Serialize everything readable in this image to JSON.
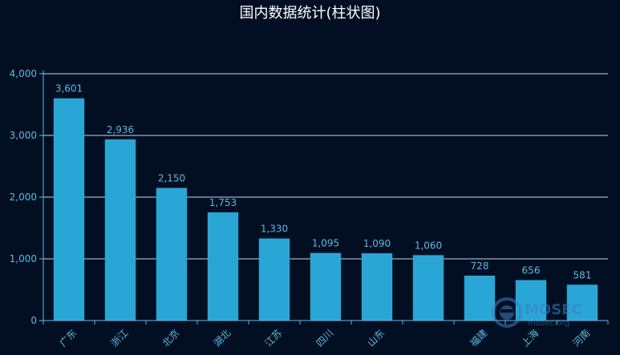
{
  "chart_data": {
    "type": "bar",
    "title": "国内数据统计(柱状图)",
    "categories": [
      "广东",
      "浙江",
      "北京",
      "湖北",
      "江苏",
      "四川",
      "山东",
      "",
      "福建",
      "上海",
      "河南"
    ],
    "values": [
      3601,
      2936,
      2150,
      1753,
      1330,
      1095,
      1090,
      1060,
      728,
      656,
      581
    ],
    "value_labels": [
      "3,601",
      "2,936",
      "2,150",
      "1,753",
      "1,330",
      "1,095",
      "1,090",
      "1,060",
      "728",
      "656",
      "581"
    ],
    "y_ticks": [
      0,
      1000,
      2000,
      3000,
      4000
    ],
    "y_tick_labels": [
      "0",
      "1,000",
      "2,000",
      "3,000",
      "4,000"
    ],
    "ylim": [
      0,
      4000
    ],
    "xlabel": "",
    "ylabel": "",
    "grid": true,
    "legend": "none"
  },
  "colors": {
    "background": "#020f23",
    "bar": "#29a6d6",
    "axis": "#5fb8e0",
    "grid": "#c8d6e0",
    "tick_label": "#5fb8e0",
    "value_label": "#5fb8e0",
    "title": "#ffffff"
  },
  "watermark": {
    "logo": "MOSEC",
    "sub": "mosec.org"
  }
}
